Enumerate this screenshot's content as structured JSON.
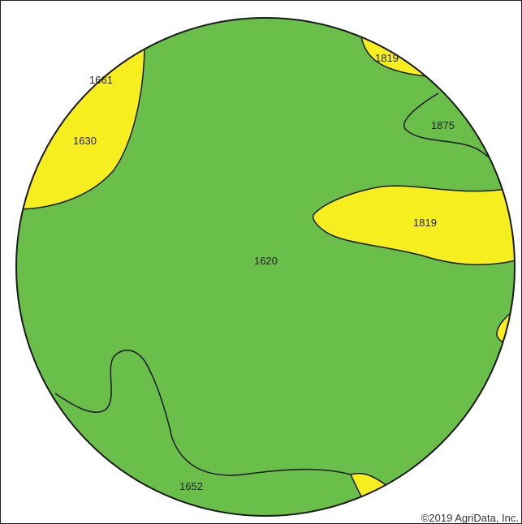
{
  "map": {
    "colors": {
      "green": "#6abf4b",
      "yellow": "#f6ee1e",
      "outline": "#1a1a1a"
    },
    "zones": [
      {
        "id": "zone-1620",
        "label": "1620",
        "fill": "green"
      },
      {
        "id": "zone-1661",
        "label": "1661",
        "fill": "yellow"
      },
      {
        "id": "zone-1630",
        "label": "1630",
        "fill": "yellow"
      },
      {
        "id": "zone-1819-top",
        "label": "1819",
        "fill": "yellow"
      },
      {
        "id": "zone-1875",
        "label": "1875",
        "fill": "green"
      },
      {
        "id": "zone-1819-right",
        "label": "1819",
        "fill": "yellow"
      },
      {
        "id": "zone-1652",
        "label": "1652",
        "fill": "green"
      }
    ],
    "copyright": "©2019 AgriData, Inc."
  }
}
